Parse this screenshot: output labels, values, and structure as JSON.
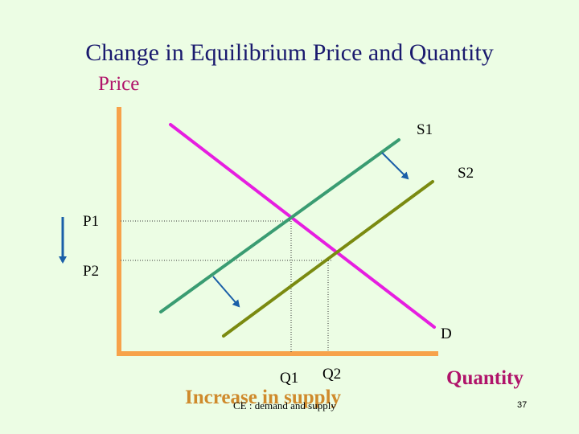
{
  "slide": {
    "title": "Change in Equilibrium Price and Quantity",
    "y_axis_label": "Price",
    "x_axis_label": "Quantity",
    "caption": "Increase in supply",
    "footer": "CE : demand and supply",
    "page_number": "37"
  },
  "diagram": {
    "curves": {
      "s1": "S1",
      "s2": "S2",
      "d": "D"
    },
    "price_levels": {
      "p1": "P1",
      "p2": "P2"
    },
    "quantity_levels": {
      "q1": "Q1",
      "q2": "Q2"
    }
  },
  "colors": {
    "background": "#ecfde4",
    "axes": "#f7a24a",
    "demand": "#e61ee0",
    "supply_1": "#3a9c72",
    "supply_2": "#7a8a10",
    "arrows": "#1a5fa8",
    "title": "#1a1a6e",
    "axis_labels": "#b0136a",
    "caption": "#cf8a2c"
  }
}
